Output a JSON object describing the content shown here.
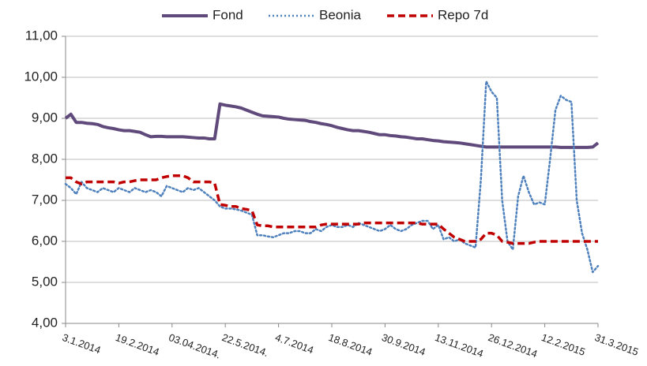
{
  "chart_data": {
    "type": "line",
    "categories": [
      "3.1.2014",
      null,
      null,
      null,
      null,
      null,
      null,
      null,
      null,
      null,
      "19.2.2014",
      null,
      null,
      null,
      null,
      null,
      null,
      null,
      null,
      null,
      "03.04.2014.",
      null,
      null,
      null,
      null,
      null,
      null,
      null,
      null,
      null,
      "22.5.2014.",
      null,
      null,
      null,
      null,
      null,
      null,
      null,
      null,
      null,
      "4.7.2014",
      null,
      null,
      null,
      null,
      null,
      null,
      null,
      null,
      null,
      "18.8.2014",
      null,
      null,
      null,
      null,
      null,
      null,
      null,
      null,
      null,
      "30.9.2014",
      null,
      null,
      null,
      null,
      null,
      null,
      null,
      null,
      null,
      "13.11.2014",
      null,
      null,
      null,
      null,
      null,
      null,
      null,
      null,
      null,
      "26.12.2014",
      null,
      null,
      null,
      null,
      null,
      null,
      null,
      null,
      null,
      "12.2.2015",
      null,
      null,
      null,
      null,
      null,
      null,
      null,
      null,
      null,
      "31.3.2015"
    ],
    "series": [
      {
        "name": "Fond",
        "color": "#5f4a7b",
        "dash": "solid",
        "values": [
          9.0,
          9.1,
          8.9,
          8.9,
          8.88,
          8.87,
          8.85,
          8.8,
          8.77,
          8.75,
          8.72,
          8.7,
          8.7,
          8.68,
          8.66,
          8.6,
          8.55,
          8.56,
          8.56,
          8.55,
          8.55,
          8.55,
          8.55,
          8.54,
          8.53,
          8.52,
          8.52,
          8.5,
          8.5,
          9.35,
          9.32,
          9.3,
          9.28,
          9.25,
          9.2,
          9.15,
          9.1,
          9.06,
          9.05,
          9.04,
          9.03,
          9.0,
          8.98,
          8.97,
          8.96,
          8.95,
          8.92,
          8.9,
          8.87,
          8.85,
          8.82,
          8.78,
          8.75,
          8.72,
          8.7,
          8.7,
          8.68,
          8.66,
          8.63,
          8.6,
          8.6,
          8.58,
          8.57,
          8.55,
          8.54,
          8.52,
          8.5,
          8.5,
          8.48,
          8.46,
          8.45,
          8.43,
          8.42,
          8.41,
          8.4,
          8.38,
          8.36,
          8.34,
          8.32,
          8.3,
          8.3,
          8.3,
          8.3,
          8.3,
          8.3,
          8.3,
          8.3,
          8.3,
          8.3,
          8.3,
          8.3,
          8.3,
          8.3,
          8.29,
          8.29,
          8.29,
          8.29,
          8.29,
          8.29,
          8.3,
          8.4
        ]
      },
      {
        "name": "Beonia",
        "color": "#4f81bd",
        "dash": "dotted",
        "values": [
          7.4,
          7.3,
          7.15,
          7.45,
          7.3,
          7.25,
          7.2,
          7.3,
          7.25,
          7.2,
          7.3,
          7.25,
          7.2,
          7.3,
          7.25,
          7.2,
          7.25,
          7.2,
          7.1,
          7.35,
          7.3,
          7.25,
          7.2,
          7.3,
          7.25,
          7.3,
          7.2,
          7.1,
          7.0,
          6.85,
          6.8,
          6.8,
          6.78,
          6.75,
          6.7,
          6.65,
          6.15,
          6.15,
          6.12,
          6.1,
          6.15,
          6.2,
          6.2,
          6.25,
          6.25,
          6.2,
          6.2,
          6.3,
          6.25,
          6.35,
          6.4,
          6.35,
          6.35,
          6.4,
          6.35,
          6.45,
          6.4,
          6.35,
          6.3,
          6.25,
          6.3,
          6.4,
          6.3,
          6.25,
          6.3,
          6.4,
          6.45,
          6.5,
          6.5,
          6.3,
          6.4,
          6.05,
          6.1,
          6.0,
          6.05,
          5.95,
          5.9,
          5.85,
          7.5,
          9.9,
          9.65,
          9.5,
          7.0,
          6.0,
          5.8,
          7.1,
          7.6,
          7.2,
          6.9,
          6.95,
          6.9,
          8.0,
          9.2,
          9.55,
          9.45,
          9.4,
          7.0,
          6.2,
          5.8,
          5.25,
          5.4
        ]
      },
      {
        "name": "Repo 7d",
        "color": "#c00000",
        "dash": "dashed",
        "values": [
          7.55,
          7.55,
          7.45,
          7.4,
          7.45,
          7.45,
          7.45,
          7.45,
          7.45,
          7.45,
          7.42,
          7.45,
          7.45,
          7.48,
          7.5,
          7.5,
          7.5,
          7.5,
          7.55,
          7.58,
          7.6,
          7.6,
          7.6,
          7.55,
          7.45,
          7.45,
          7.45,
          7.45,
          7.42,
          6.9,
          6.88,
          6.85,
          6.85,
          6.8,
          6.78,
          6.75,
          6.4,
          6.38,
          6.38,
          6.35,
          6.35,
          6.35,
          6.35,
          6.35,
          6.35,
          6.35,
          6.35,
          6.35,
          6.4,
          6.42,
          6.42,
          6.42,
          6.42,
          6.42,
          6.42,
          6.42,
          6.45,
          6.45,
          6.45,
          6.45,
          6.45,
          6.45,
          6.45,
          6.45,
          6.45,
          6.45,
          6.45,
          6.42,
          6.42,
          6.42,
          6.42,
          6.3,
          6.2,
          6.1,
          6.05,
          6.0,
          6.0,
          6.0,
          6.05,
          6.2,
          6.2,
          6.15,
          6.0,
          5.98,
          5.95,
          5.95,
          5.95,
          5.95,
          5.98,
          6.0,
          6.0,
          6.0,
          6.0,
          6.0,
          6.0,
          6.0,
          6.0,
          6.0,
          6.0,
          6.0,
          6.0
        ]
      }
    ],
    "ylim": [
      4,
      11
    ],
    "yticks": [
      {
        "value": 4,
        "label": "4,00"
      },
      {
        "value": 5,
        "label": "5,00"
      },
      {
        "value": 6,
        "label": "6,00"
      },
      {
        "value": 7,
        "label": "7,00"
      },
      {
        "value": 8,
        "label": "8,00"
      },
      {
        "value": 9,
        "label": "9,00"
      },
      {
        "value": 10,
        "label": "10,00"
      },
      {
        "value": 11,
        "label": "11,00"
      }
    ],
    "grid": true,
    "legend": "top"
  }
}
